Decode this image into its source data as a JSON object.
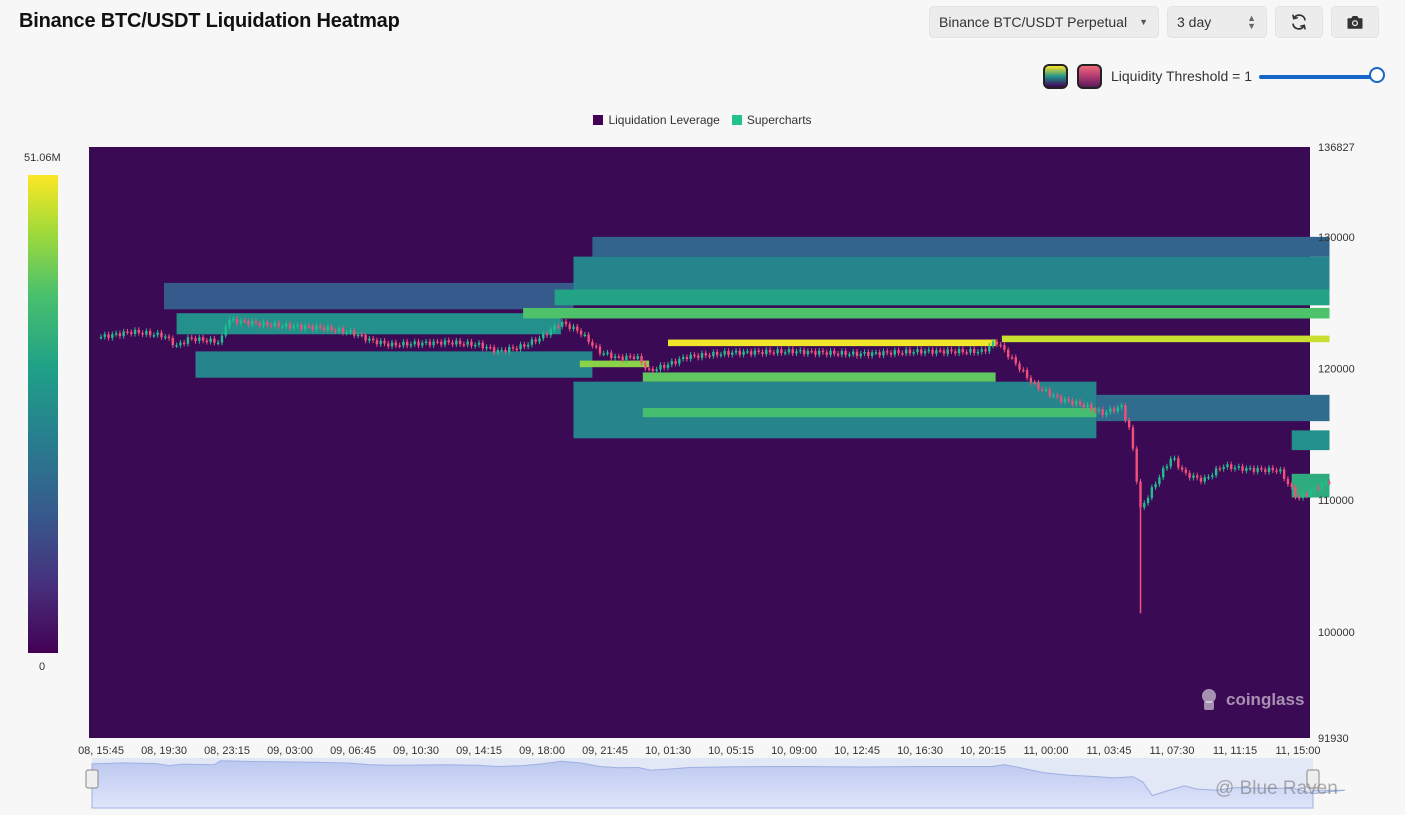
{
  "header": {
    "title": "Binance BTC/USDT Liquidation Heatmap",
    "pair_select": "Binance BTC/USDT Perpetual",
    "range_select": "3 day",
    "refresh_icon": "refresh-icon",
    "camera_icon": "camera-icon"
  },
  "threshold": {
    "label": "Liquidity Threshold = 1",
    "value": 1,
    "slider_fraction": 1.0
  },
  "legend": [
    {
      "name": "Liquidation Leverage",
      "color": "#440154"
    },
    {
      "name": "Supercharts",
      "color": "#22c38a"
    }
  ],
  "colorbar": {
    "max_label": "51.06M",
    "min_label": "0"
  },
  "watermark": {
    "brand": "coinglass",
    "footer": "@ Blue Raven"
  },
  "chart_data": {
    "type": "heatmap",
    "title": "Binance BTC/USDT Liquidation Heatmap",
    "y_ticks": [
      "136827",
      "130000",
      "120000",
      "110000",
      "100000",
      "91930"
    ],
    "ylim": [
      91930,
      136827
    ],
    "x_ticks": [
      "08, 15:45",
      "08, 19:30",
      "08, 23:15",
      "09, 03:00",
      "09, 06:45",
      "09, 10:30",
      "09, 14:15",
      "09, 18:00",
      "09, 21:45",
      "10, 01:30",
      "10, 05:15",
      "10, 09:00",
      "10, 12:45",
      "10, 16:30",
      "10, 20:15",
      "11, 00:00",
      "11, 03:45",
      "11, 07:30",
      "11, 11:15",
      "11, 15:00"
    ],
    "price_series": [
      {
        "t": 0,
        "p": 122400
      },
      {
        "t": 0.5,
        "p": 122800
      },
      {
        "t": 1,
        "p": 122500
      },
      {
        "t": 1.2,
        "p": 121700
      },
      {
        "t": 1.4,
        "p": 122300
      },
      {
        "t": 1.9,
        "p": 122000
      },
      {
        "t": 2.0,
        "p": 123700
      },
      {
        "t": 2.5,
        "p": 123400
      },
      {
        "t": 3.0,
        "p": 123200
      },
      {
        "t": 3.5,
        "p": 123100
      },
      {
        "t": 4.0,
        "p": 122700
      },
      {
        "t": 4.3,
        "p": 122100
      },
      {
        "t": 4.6,
        "p": 121800
      },
      {
        "t": 5.0,
        "p": 121900
      },
      {
        "t": 5.5,
        "p": 122000
      },
      {
        "t": 6.0,
        "p": 121800
      },
      {
        "t": 6.3,
        "p": 121300
      },
      {
        "t": 6.7,
        "p": 121700
      },
      {
        "t": 7.0,
        "p": 122400
      },
      {
        "t": 7.3,
        "p": 123500
      },
      {
        "t": 7.6,
        "p": 122800
      },
      {
        "t": 7.9,
        "p": 121300
      },
      {
        "t": 8.2,
        "p": 120800
      },
      {
        "t": 8.5,
        "p": 120900
      },
      {
        "t": 8.7,
        "p": 119800
      },
      {
        "t": 9.0,
        "p": 120300
      },
      {
        "t": 9.3,
        "p": 120900
      },
      {
        "t": 10.0,
        "p": 121200
      },
      {
        "t": 11.0,
        "p": 121300
      },
      {
        "t": 12.0,
        "p": 121100
      },
      {
        "t": 13.0,
        "p": 121300
      },
      {
        "t": 14.0,
        "p": 121300
      },
      {
        "t": 14.2,
        "p": 122100
      },
      {
        "t": 14.5,
        "p": 120500
      },
      {
        "t": 14.8,
        "p": 118800
      },
      {
        "t": 15.2,
        "p": 117700
      },
      {
        "t": 15.6,
        "p": 117200
      },
      {
        "t": 15.9,
        "p": 116600
      },
      {
        "t": 16.2,
        "p": 117100
      },
      {
        "t": 16.35,
        "p": 115000
      },
      {
        "t": 16.5,
        "p": 109300
      },
      {
        "t": 16.8,
        "p": 111800
      },
      {
        "t": 17.0,
        "p": 113300
      },
      {
        "t": 17.2,
        "p": 112000
      },
      {
        "t": 17.5,
        "p": 111500
      },
      {
        "t": 17.8,
        "p": 112600
      },
      {
        "t": 18.1,
        "p": 112400
      },
      {
        "t": 18.4,
        "p": 112300
      },
      {
        "t": 18.7,
        "p": 112300
      },
      {
        "t": 19.0,
        "p": 110100
      },
      {
        "t": 19.3,
        "p": 111000
      },
      {
        "t": 19.5,
        "p": 111500
      }
    ],
    "price_spike_low": {
      "t": 16.5,
      "p": 101400
    },
    "liquidity_bands": [
      {
        "p_top": 124600,
        "p_bot": 123800,
        "t0": 6.7,
        "t1": 19.5,
        "intensity": 0.72
      },
      {
        "p_top": 122500,
        "p_bot": 122000,
        "t0": 14.3,
        "t1": 19.5,
        "intensity": 0.92
      },
      {
        "p_top": 122200,
        "p_bot": 121700,
        "t0": 9.0,
        "t1": 14.2,
        "intensity": 0.98
      },
      {
        "p_top": 119700,
        "p_bot": 119000,
        "t0": 8.6,
        "t1": 14.2,
        "intensity": 0.75
      },
      {
        "p_top": 117000,
        "p_bot": 116300,
        "t0": 8.6,
        "t1": 15.8,
        "intensity": 0.7
      },
      {
        "p_top": 120600,
        "p_bot": 120100,
        "t0": 7.6,
        "t1": 8.7,
        "intensity": 0.82
      },
      {
        "p_top": 128500,
        "p_bot": 125000,
        "t0": 7.5,
        "t1": 19.5,
        "intensity": 0.45
      },
      {
        "p_top": 126000,
        "p_bot": 124800,
        "t0": 7.2,
        "t1": 19.5,
        "intensity": 0.58
      },
      {
        "p_top": 130000,
        "p_bot": 128500,
        "t0": 7.8,
        "t1": 19.5,
        "intensity": 0.32
      },
      {
        "p_top": 124200,
        "p_bot": 122600,
        "t0": 1.2,
        "t1": 7.3,
        "intensity": 0.5
      },
      {
        "p_top": 121300,
        "p_bot": 119300,
        "t0": 1.5,
        "t1": 7.8,
        "intensity": 0.45
      },
      {
        "p_top": 119000,
        "p_bot": 114700,
        "t0": 7.5,
        "t1": 15.8,
        "intensity": 0.45
      },
      {
        "p_top": 126500,
        "p_bot": 124500,
        "t0": 1.0,
        "t1": 7.5,
        "intensity": 0.28
      },
      {
        "p_top": 118000,
        "p_bot": 116000,
        "t0": 15.8,
        "t1": 19.5,
        "intensity": 0.35
      },
      {
        "p_top": 112000,
        "p_bot": 110200,
        "t0": 18.9,
        "t1": 19.5,
        "intensity": 0.62
      },
      {
        "p_top": 115300,
        "p_bot": 113800,
        "t0": 18.9,
        "t1": 19.5,
        "intensity": 0.5
      }
    ],
    "colorbar_range": [
      0,
      51060000
    ]
  }
}
